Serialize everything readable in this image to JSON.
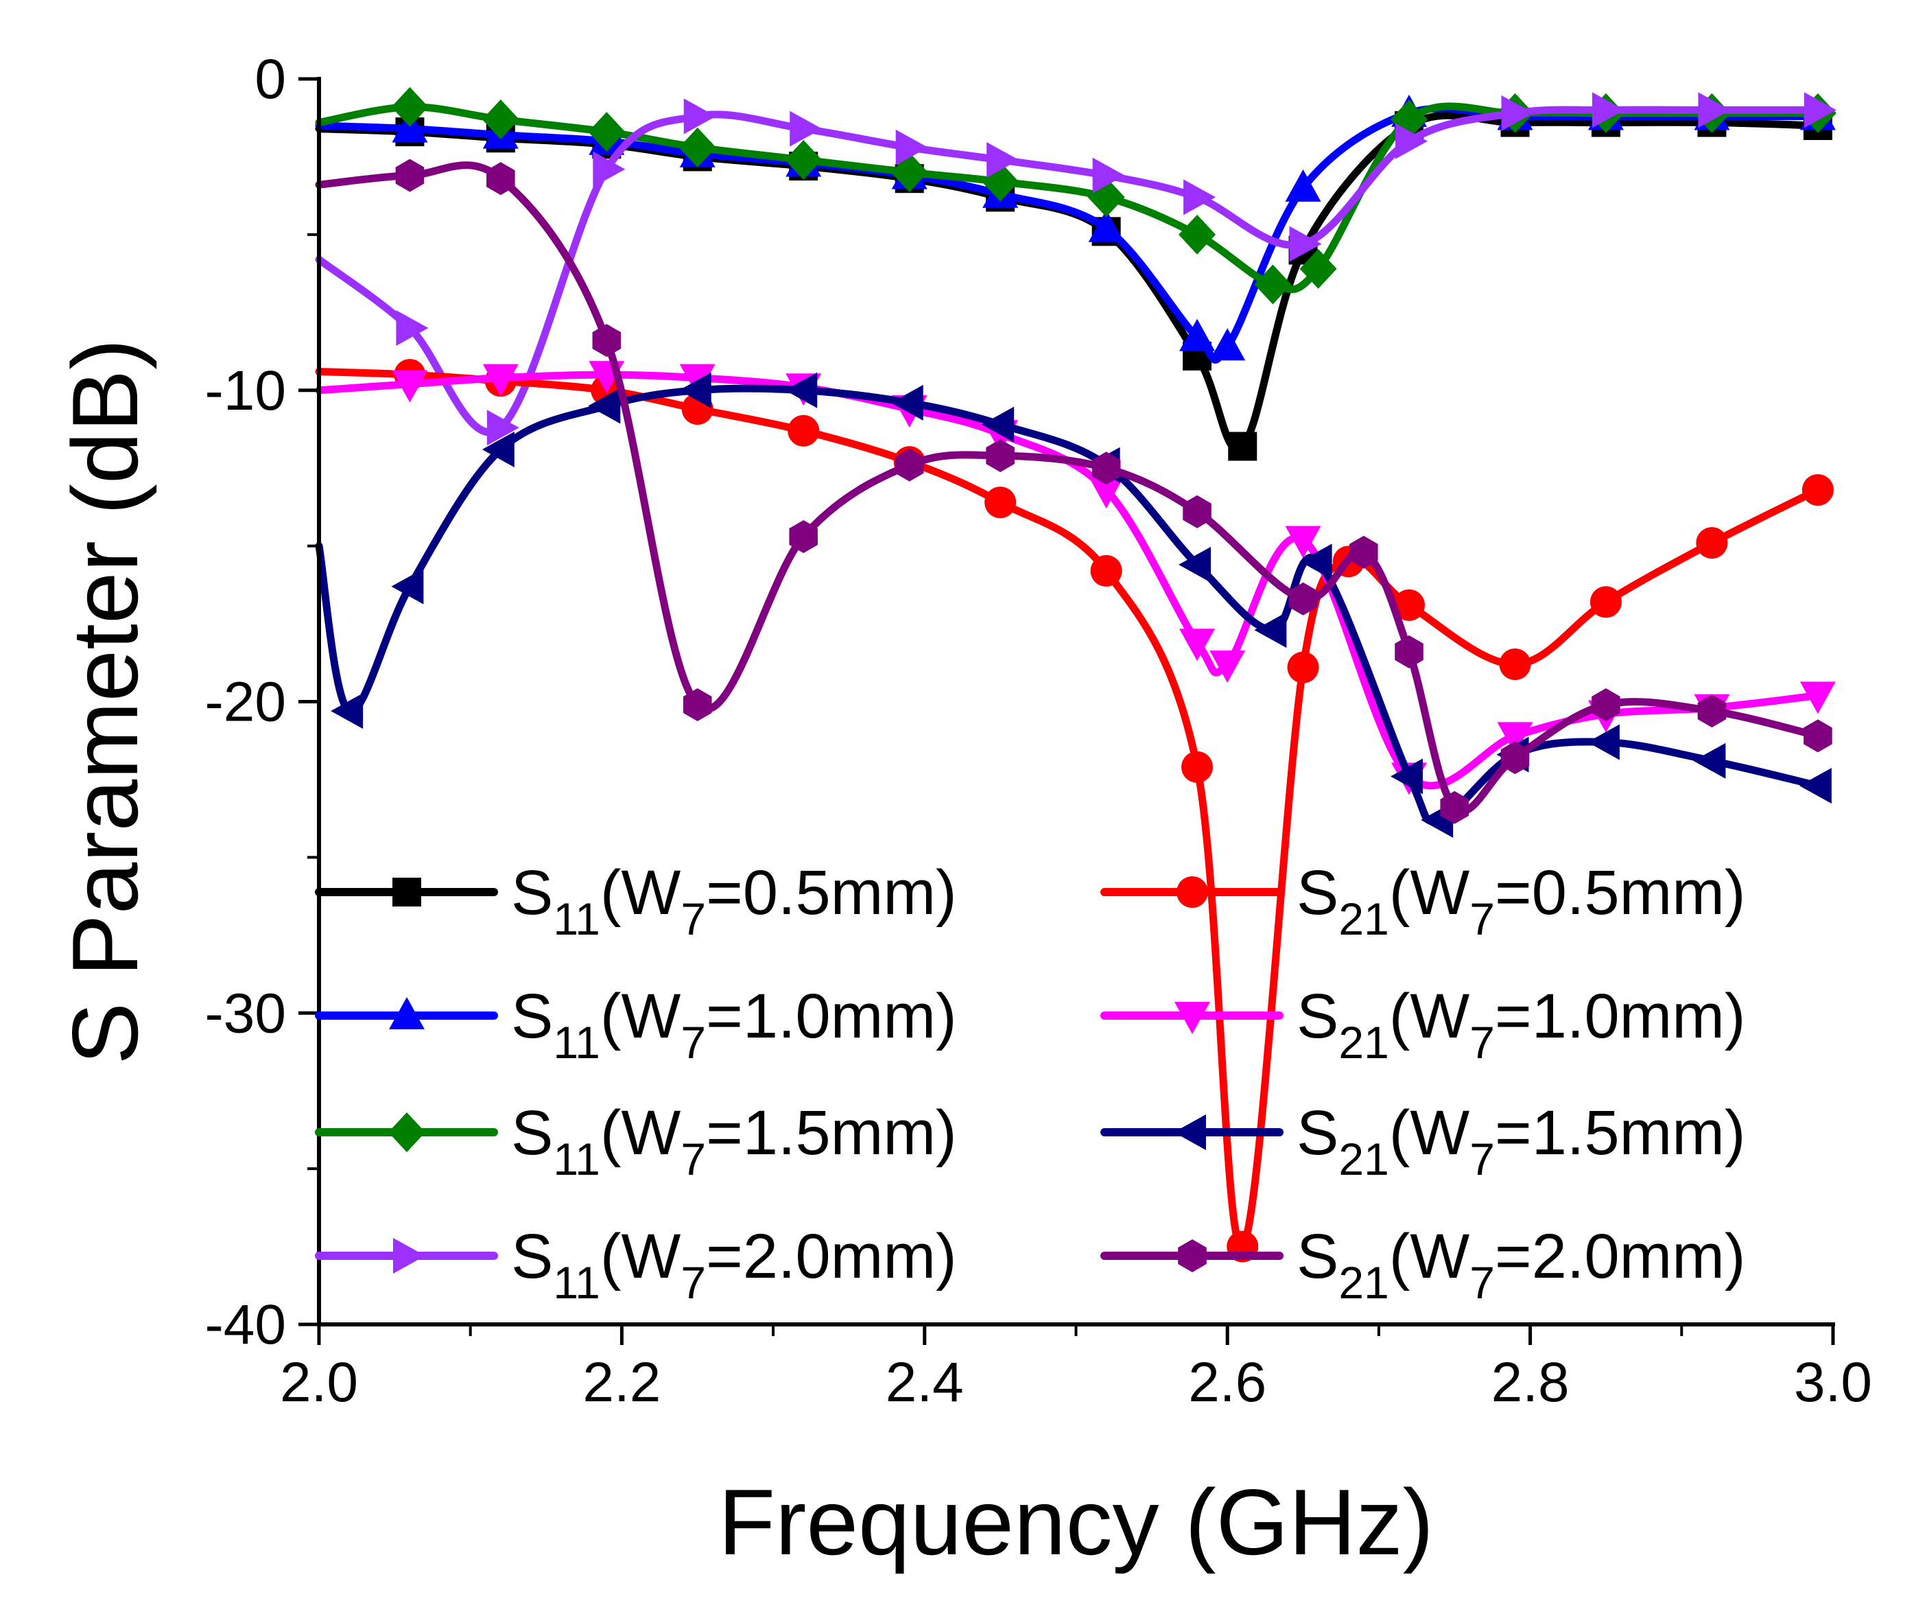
{
  "chart_data": {
    "type": "line",
    "title": "",
    "xlabel": "Frequency (GHz)",
    "ylabel": "S Parameter (dB)",
    "xlim": [
      2.0,
      3.0
    ],
    "ylim": [
      -40,
      0
    ],
    "xticks": [
      2.0,
      2.2,
      2.4,
      2.6,
      2.8,
      3.0
    ],
    "xtick_labels": [
      "2.0",
      "2.2",
      "2.4",
      "2.6",
      "2.8",
      "3.0"
    ],
    "yticks": [
      0,
      -10,
      -20,
      -30,
      -40
    ],
    "ytick_labels": [
      "0",
      "-10",
      "-20",
      "-30",
      "-40"
    ],
    "grid": false,
    "legend_position": "bottom, two columns",
    "series": [
      {
        "name": "S11(W7=0.5mm)",
        "label_main": "S",
        "label_sub1": "11",
        "label_mid": "(W",
        "label_sub2": "7",
        "label_end": "=0.5mm)",
        "color": "#000000",
        "marker": "square",
        "x": [
          2.0,
          2.06,
          2.12,
          2.19,
          2.25,
          2.32,
          2.39,
          2.45,
          2.52,
          2.58,
          2.61,
          2.65,
          2.72,
          2.79,
          2.85,
          2.92,
          2.99
        ],
        "y": [
          -1.6,
          -1.7,
          -1.9,
          -2.1,
          -2.5,
          -2.8,
          -3.2,
          -3.8,
          -4.9,
          -8.9,
          -11.8,
          -5.5,
          -1.5,
          -1.4,
          -1.4,
          -1.4,
          -1.5
        ]
      },
      {
        "name": "S11(W7=1.0mm)",
        "label_main": "S",
        "label_sub1": "11",
        "label_mid": "(W",
        "label_sub2": "7",
        "label_end": "=1.0mm)",
        "color": "#0000ff",
        "marker": "triangle-up",
        "x": [
          2.0,
          2.06,
          2.12,
          2.19,
          2.25,
          2.32,
          2.39,
          2.45,
          2.52,
          2.58,
          2.6,
          2.65,
          2.72,
          2.79,
          2.85,
          2.92,
          2.99
        ],
        "y": [
          -1.5,
          -1.6,
          -1.8,
          -2.0,
          -2.4,
          -2.7,
          -3.1,
          -3.7,
          -4.8,
          -8.3,
          -8.6,
          -3.5,
          -1.1,
          -1.2,
          -1.2,
          -1.2,
          -1.2
        ]
      },
      {
        "name": "S11(W7=1.5mm)",
        "label_main": "S",
        "label_sub1": "11",
        "label_mid": "(W",
        "label_sub2": "7",
        "label_end": "=1.5mm)",
        "color": "#008000",
        "marker": "diamond",
        "x": [
          2.0,
          2.06,
          2.12,
          2.19,
          2.25,
          2.32,
          2.39,
          2.45,
          2.52,
          2.58,
          2.63,
          2.66,
          2.72,
          2.79,
          2.85,
          2.92,
          2.99
        ],
        "y": [
          -1.4,
          -0.9,
          -1.3,
          -1.7,
          -2.2,
          -2.6,
          -3.0,
          -3.3,
          -3.8,
          -5.0,
          -6.6,
          -6.1,
          -1.3,
          -1.1,
          -1.1,
          -1.1,
          -1.1
        ]
      },
      {
        "name": "S11(W7=2.0mm)",
        "label_main": "S",
        "label_sub1": "11",
        "label_mid": "(W",
        "label_sub2": "7",
        "label_end": "=2.0mm)",
        "color": "#9b30ff",
        "marker": "triangle-right",
        "x": [
          2.0,
          2.06,
          2.12,
          2.19,
          2.25,
          2.32,
          2.39,
          2.45,
          2.52,
          2.58,
          2.65,
          2.72,
          2.79,
          2.85,
          2.92,
          2.99
        ],
        "y": [
          -5.8,
          -8.0,
          -11.2,
          -2.9,
          -1.2,
          -1.6,
          -2.2,
          -2.6,
          -3.1,
          -3.8,
          -5.3,
          -2.0,
          -1.1,
          -1.0,
          -1.0,
          -1.0
        ]
      },
      {
        "name": "S21(W7=0.5mm)",
        "label_main": "S",
        "label_sub1": "21",
        "label_mid": "(W",
        "label_sub2": "7",
        "label_end": "=0.5mm)",
        "color": "#ff0000",
        "marker": "circle",
        "x": [
          2.0,
          2.06,
          2.12,
          2.19,
          2.25,
          2.32,
          2.39,
          2.45,
          2.52,
          2.58,
          2.61,
          2.65,
          2.68,
          2.72,
          2.79,
          2.85,
          2.92,
          2.99
        ],
        "y": [
          -9.4,
          -9.5,
          -9.7,
          -10.0,
          -10.6,
          -11.3,
          -12.3,
          -13.6,
          -15.8,
          -22.1,
          -37.5,
          -18.9,
          -15.5,
          -16.9,
          -18.8,
          -16.8,
          -14.9,
          -13.2
        ]
      },
      {
        "name": "S21(W7=1.0mm)",
        "label_main": "S",
        "label_sub1": "21",
        "label_mid": "(W",
        "label_sub2": "7",
        "label_end": "=1.0mm)",
        "color": "#ff00ff",
        "marker": "triangle-down",
        "x": [
          2.0,
          2.06,
          2.12,
          2.19,
          2.25,
          2.32,
          2.39,
          2.45,
          2.52,
          2.58,
          2.6,
          2.65,
          2.72,
          2.79,
          2.85,
          2.92,
          2.99
        ],
        "y": [
          -10.0,
          -9.8,
          -9.6,
          -9.5,
          -9.6,
          -9.9,
          -10.6,
          -11.4,
          -13.2,
          -18.1,
          -18.8,
          -14.8,
          -22.4,
          -21.1,
          -20.4,
          -20.2,
          -19.8
        ]
      },
      {
        "name": "S21(W7=1.5mm)",
        "label_main": "S",
        "label_sub1": "21",
        "label_mid": "(W",
        "label_sub2": "7",
        "label_end": "=1.5mm)",
        "color": "#000080",
        "marker": "triangle-left",
        "x": [
          2.0,
          2.02,
          2.06,
          2.12,
          2.19,
          2.25,
          2.32,
          2.39,
          2.45,
          2.52,
          2.58,
          2.63,
          2.66,
          2.72,
          2.74,
          2.79,
          2.85,
          2.92,
          2.99
        ],
        "y": [
          -15.0,
          -20.3,
          -16.3,
          -11.9,
          -10.5,
          -10.0,
          -10.0,
          -10.4,
          -11.1,
          -12.4,
          -15.6,
          -17.7,
          -15.5,
          -22.4,
          -23.8,
          -21.7,
          -21.3,
          -21.9,
          -22.7
        ]
      },
      {
        "name": "S21(W7=2.0mm)",
        "label_main": "S",
        "label_sub1": "21",
        "label_mid": "(W",
        "label_sub2": "7",
        "label_end": "=2.0mm)",
        "color": "#800080",
        "marker": "hexagon",
        "x": [
          2.0,
          2.06,
          2.12,
          2.19,
          2.25,
          2.32,
          2.39,
          2.45,
          2.52,
          2.58,
          2.65,
          2.69,
          2.72,
          2.75,
          2.79,
          2.85,
          2.92,
          2.99
        ],
        "y": [
          -3.4,
          -3.1,
          -3.2,
          -8.4,
          -20.1,
          -14.7,
          -12.4,
          -12.1,
          -12.5,
          -13.9,
          -16.7,
          -15.2,
          -18.4,
          -23.4,
          -21.8,
          -20.1,
          -20.3,
          -21.1
        ]
      }
    ]
  }
}
